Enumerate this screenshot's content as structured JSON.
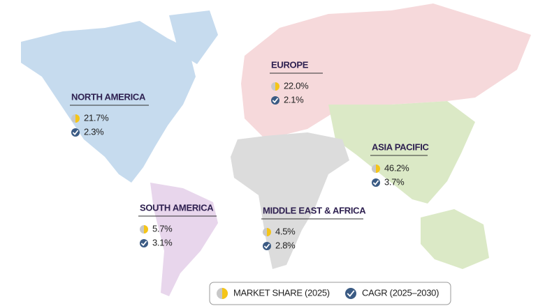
{
  "regions": [
    {
      "name": "NORTH AMERICA",
      "market_share": "21.7%",
      "cagr": "2.3%"
    },
    {
      "name": "EUROPE",
      "market_share": "22.0%",
      "cagr": "2.1%"
    },
    {
      "name": "ASIA PACIFIC",
      "market_share": "46.2%",
      "cagr": "3.7%"
    },
    {
      "name": "SOUTH AMERICA",
      "market_share": "5.7%",
      "cagr": "3.1%"
    },
    {
      "name": "MIDDLE EAST & AFRICA",
      "market_share": "4.5%",
      "cagr": "2.8%"
    }
  ],
  "legend": {
    "market_share": "MARKET SHARE (2025)",
    "cagr": "CAGR (2025–2030)"
  }
}
